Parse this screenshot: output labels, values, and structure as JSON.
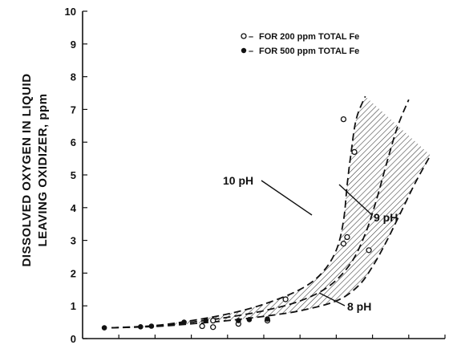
{
  "chart_data": {
    "type": "scatter",
    "title": "",
    "xlabel": "",
    "ylabel_lines": [
      "DISSOLVED OXYGEN IN LIQUID",
      "LEAVING OXIDIZER, ppm"
    ],
    "ylim": [
      0,
      10
    ],
    "xlim": [
      0,
      10
    ],
    "y_ticks": [
      "0",
      "1",
      "2",
      "3",
      "4",
      "5",
      "6",
      "7",
      "8",
      "9",
      "10"
    ],
    "x_tick_labels_visible": false,
    "legend": {
      "position": "top-right",
      "entries": [
        {
          "marker": "open-circle",
          "label": "FOR 200 ppm TOTAL Fe"
        },
        {
          "marker": "filled-circle",
          "label": "FOR 500 ppm TOTAL Fe"
        }
      ]
    },
    "series": [
      {
        "name": "FOR 200 ppm TOTAL Fe",
        "marker": "open",
        "points": [
          [
            3.3,
            0.38
          ],
          [
            3.6,
            0.35
          ],
          [
            3.6,
            0.55
          ],
          [
            4.3,
            0.45
          ],
          [
            5.1,
            0.55
          ],
          [
            5.6,
            1.2
          ],
          [
            7.2,
            6.7
          ],
          [
            7.5,
            5.7
          ],
          [
            7.2,
            2.9
          ],
          [
            7.3,
            3.1
          ],
          [
            7.9,
            2.7
          ]
        ]
      },
      {
        "name": "FOR 500 ppm TOTAL Fe",
        "marker": "filled",
        "points": [
          [
            0.6,
            0.33
          ],
          [
            1.6,
            0.36
          ],
          [
            1.9,
            0.38
          ],
          [
            2.8,
            0.5
          ],
          [
            3.4,
            0.55
          ],
          [
            4.3,
            0.55
          ],
          [
            4.6,
            0.58
          ],
          [
            5.1,
            0.6
          ]
        ]
      }
    ],
    "curves": [
      {
        "name": "10 pH",
        "points": [
          [
            0.8,
            0.33
          ],
          [
            2.0,
            0.4
          ],
          [
            3.0,
            0.55
          ],
          [
            4.0,
            0.75
          ],
          [
            5.0,
            1.05
          ],
          [
            6.0,
            1.5
          ],
          [
            6.6,
            2.0
          ],
          [
            7.0,
            2.7
          ],
          [
            7.2,
            3.6
          ],
          [
            7.3,
            4.7
          ],
          [
            7.4,
            5.6
          ],
          [
            7.55,
            6.7
          ],
          [
            7.8,
            7.4
          ]
        ]
      },
      {
        "name": "9 pH",
        "points": [
          [
            0.8,
            0.33
          ],
          [
            2.0,
            0.38
          ],
          [
            3.0,
            0.5
          ],
          [
            4.0,
            0.65
          ],
          [
            5.0,
            0.85
          ],
          [
            6.0,
            1.15
          ],
          [
            6.8,
            1.6
          ],
          [
            7.4,
            2.3
          ],
          [
            7.8,
            3.2
          ],
          [
            8.1,
            4.2
          ],
          [
            8.4,
            5.4
          ],
          [
            8.7,
            6.5
          ],
          [
            9.0,
            7.3
          ]
        ]
      },
      {
        "name": "8 pH",
        "points": [
          [
            0.8,
            0.33
          ],
          [
            2.0,
            0.37
          ],
          [
            3.0,
            0.45
          ],
          [
            4.0,
            0.55
          ],
          [
            5.0,
            0.68
          ],
          [
            6.0,
            0.85
          ],
          [
            7.0,
            1.15
          ],
          [
            7.6,
            1.6
          ],
          [
            8.0,
            2.2
          ],
          [
            8.4,
            3.0
          ],
          [
            8.8,
            3.9
          ],
          [
            9.2,
            4.8
          ],
          [
            9.6,
            5.6
          ]
        ]
      }
    ],
    "curve_labels": [
      {
        "text": "10 pH",
        "target": "10 pH"
      },
      {
        "text": "9 pH",
        "target": "9 pH"
      },
      {
        "text": "8 pH",
        "target": "8 pH"
      }
    ]
  }
}
